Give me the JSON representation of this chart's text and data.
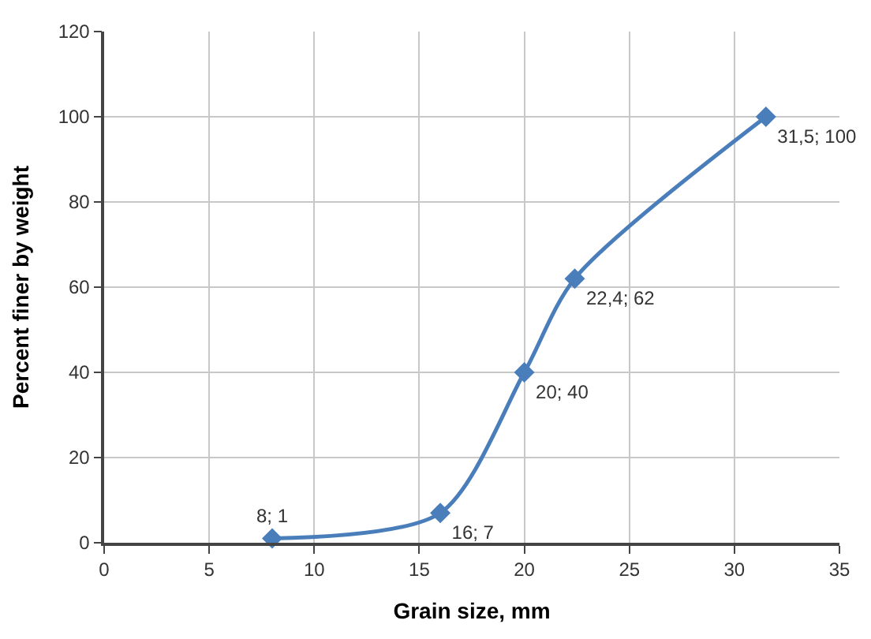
{
  "chart_data": {
    "type": "line",
    "xlabel": "Grain size, mm",
    "ylabel": "Percent finer by weight",
    "x": [
      8,
      16,
      20,
      22.4,
      31.5
    ],
    "series": [
      {
        "color": "#4a7ebb",
        "values": [
          1,
          7,
          40,
          62,
          100
        ],
        "value_labels": [
          "8; 1",
          "16; 7",
          "20; 40",
          "22,4; 62",
          "31,5; 100"
        ]
      }
    ],
    "xlim": [
      0,
      35
    ],
    "xticks": [
      0,
      5,
      10,
      15,
      20,
      25,
      30,
      35
    ],
    "ylim": [
      0,
      120
    ],
    "yticks": [
      0,
      20,
      40,
      60,
      80,
      100,
      120
    ],
    "grid": true,
    "legend": false,
    "marker": "diamond",
    "line_style": "solid"
  }
}
